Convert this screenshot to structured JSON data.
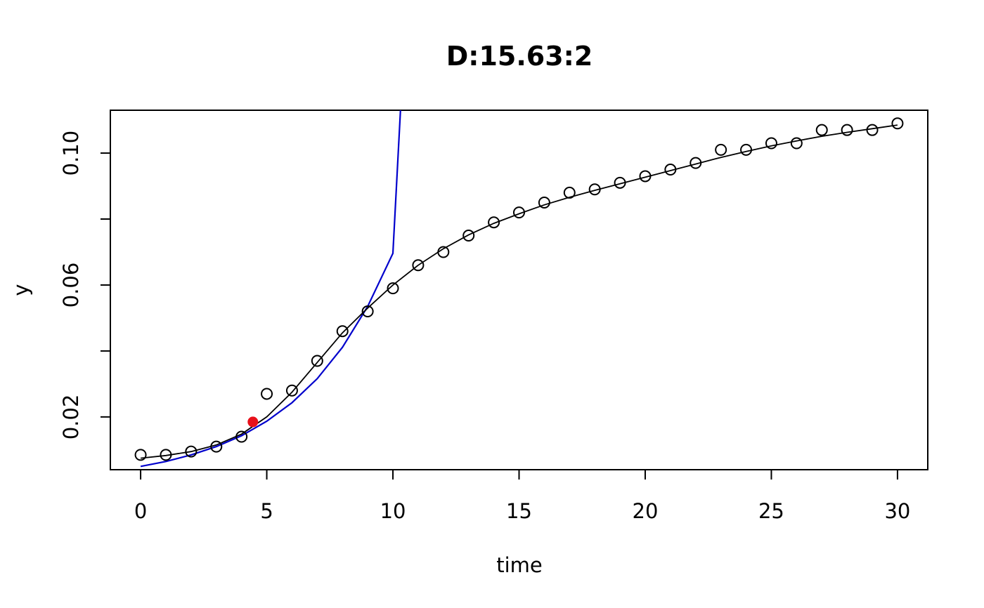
{
  "chart_data": {
    "type": "scatter",
    "title": "D:15.63:2",
    "xlabel": "time",
    "ylabel": "y",
    "xlim": [
      -1.2,
      31.2
    ],
    "ylim": [
      0.004,
      0.113
    ],
    "xticks": [
      0,
      5,
      10,
      15,
      20,
      25,
      30
    ],
    "xtick_labels": [
      "0",
      "5",
      "10",
      "15",
      "20",
      "25",
      "30"
    ],
    "yticks": [
      0.02,
      0.04,
      0.06,
      0.08,
      0.1
    ],
    "ytick_labels": [
      "0.02",
      "",
      "0.06",
      "",
      "0.10"
    ],
    "grid": false,
    "legend": "none",
    "colors": {
      "points": "#000000",
      "fitted_curve": "#000000",
      "exponential_fit": "#0000cc",
      "highlight_point": "#e8101a"
    },
    "points": {
      "x": [
        0,
        1,
        2,
        3,
        4,
        5,
        6,
        7,
        8,
        9,
        10,
        11,
        12,
        13,
        14,
        15,
        16,
        17,
        18,
        19,
        20,
        21,
        22,
        23,
        24,
        25,
        26,
        27,
        28,
        29,
        30
      ],
      "y": [
        0.0085,
        0.0085,
        0.0095,
        0.011,
        0.014,
        0.027,
        0.028,
        0.037,
        0.046,
        0.052,
        0.059,
        0.066,
        0.07,
        0.075,
        0.079,
        0.082,
        0.085,
        0.088,
        0.089,
        0.091,
        0.093,
        0.095,
        0.097,
        0.101,
        0.101,
        0.103,
        0.103,
        0.107,
        0.107,
        0.107,
        0.109
      ]
    },
    "fitted_curve": {
      "x": [
        0,
        1,
        2,
        3,
        4,
        5,
        6,
        7,
        8,
        9,
        10,
        11,
        12,
        13,
        14,
        15,
        16,
        17,
        18,
        19,
        20,
        21,
        22,
        23,
        24,
        25,
        26,
        27,
        28,
        29,
        30
      ],
      "y": [
        0.0075,
        0.0083,
        0.0095,
        0.0115,
        0.0148,
        0.02,
        0.0275,
        0.0365,
        0.0455,
        0.053,
        0.06,
        0.066,
        0.071,
        0.0752,
        0.0787,
        0.0816,
        0.0843,
        0.0866,
        0.0887,
        0.0907,
        0.0927,
        0.0947,
        0.0967,
        0.0987,
        0.1005,
        0.1022,
        0.1037,
        0.1051,
        0.1063,
        0.1074,
        0.1085
      ]
    },
    "exponential_fit": {
      "x": [
        0,
        1,
        2,
        3,
        4,
        5,
        6,
        7,
        8,
        9,
        10,
        10.3
      ],
      "y": [
        0.005,
        0.0065,
        0.0085,
        0.011,
        0.0143,
        0.0187,
        0.0243,
        0.0316,
        0.0411,
        0.0535,
        0.0696,
        0.113
      ]
    },
    "highlight_point": {
      "x": 4.45,
      "y": 0.0185
    }
  }
}
